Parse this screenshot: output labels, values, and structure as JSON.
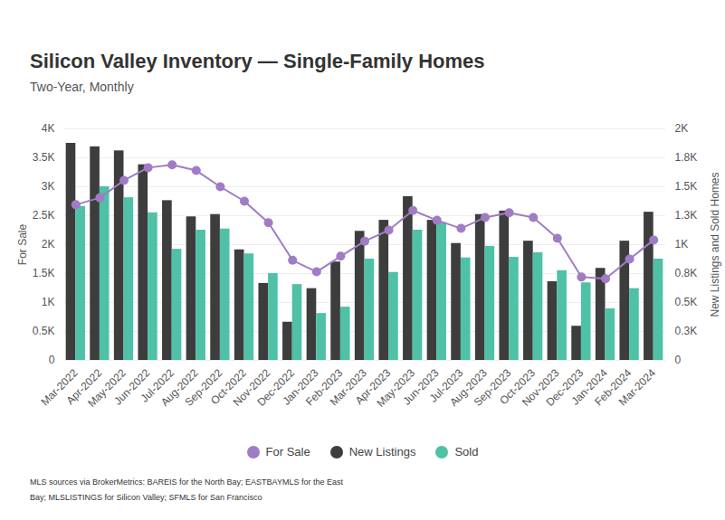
{
  "chart_data": {
    "type": "bar",
    "title": "Silicon Valley Inventory — Single-Family Homes",
    "subtitle": "Two-Year, Monthly",
    "caption": [
      "MLS sources via BrokerMetrics: BAREIS for the North Bay; EASTBAYMLS for the East",
      "Bay; MLSLISTINGS for Silicon Valley; SFMLS for San Francisco"
    ],
    "categories": [
      "Mar-2022",
      "Apr-2022",
      "May-2022",
      "Jun-2022",
      "Jul-2022",
      "Aug-2022",
      "Sep-2022",
      "Oct-2022",
      "Nov-2022",
      "Dec-2022",
      "Jan-2023",
      "Feb-2023",
      "Mar-2023",
      "Apr-2023",
      "May-2023",
      "Jun-2023",
      "Jul-2023",
      "Aug-2023",
      "Sep-2023",
      "Oct-2023",
      "Nov-2023",
      "Dec-2023",
      "Jan-2024",
      "Feb-2024",
      "Mar-2024"
    ],
    "ylabel": "For Sale",
    "y2label": "New Listings and Sold Homes",
    "ylim": [
      0,
      4000
    ],
    "yticks": [
      0,
      {
        "value": 500,
        "label": "0.5K"
      },
      {
        "value": 1000,
        "label": "1K"
      },
      {
        "value": 1500,
        "label": "1.5K"
      },
      {
        "value": 2000,
        "label": "2K"
      },
      {
        "value": 2500,
        "label": "2.5K"
      },
      {
        "value": 3000,
        "label": "3K"
      },
      {
        "value": 3500,
        "label": "3.5K"
      },
      {
        "value": 4000,
        "label": "4K"
      }
    ],
    "y2lim": [
      0,
      2000
    ],
    "y2ticks": [
      0,
      {
        "value": 250,
        "label": "0.3K"
      },
      {
        "value": 500,
        "label": "0.5K"
      },
      {
        "value": 750,
        "label": "0.8K"
      },
      {
        "value": 1000,
        "label": "1K"
      },
      {
        "value": 1250,
        "label": "1.3K"
      },
      {
        "value": 1500,
        "label": "1.5K"
      },
      {
        "value": 1750,
        "label": "1.8K"
      },
      {
        "value": 2000,
        "label": "2K"
      }
    ],
    "grid": true,
    "legend": "bottom",
    "series": [
      {
        "name": "For Sale",
        "type": "line",
        "marker": "circle",
        "color": "#a07cc5",
        "values": [
          2690,
          2810,
          3110,
          3330,
          3380,
          3280,
          3000,
          2750,
          2380,
          1730,
          1530,
          1800,
          2060,
          2250,
          2590,
          2420,
          2280,
          2470,
          2550,
          2470,
          2110,
          1440,
          1410,
          1750,
          2080
        ]
      },
      {
        "name": "New Listings",
        "type": "bar",
        "axis": "y2",
        "color": "#3d3d3d",
        "values": [
          1875,
          1845,
          1810,
          1690,
          1380,
          1240,
          1260,
          955,
          665,
          330,
          620,
          850,
          1115,
          1210,
          1415,
          1210,
          1010,
          1260,
          1290,
          1030,
          680,
          295,
          795,
          1030,
          1280
        ]
      },
      {
        "name": "Sold",
        "type": "bar",
        "axis": "y2",
        "color": "#4fc1a6",
        "values": [
          1330,
          1500,
          1405,
          1275,
          960,
          1125,
          1135,
          920,
          750,
          655,
          405,
          460,
          875,
          760,
          1125,
          1190,
          885,
          985,
          890,
          930,
          775,
          670,
          445,
          620,
          875
        ]
      }
    ]
  }
}
